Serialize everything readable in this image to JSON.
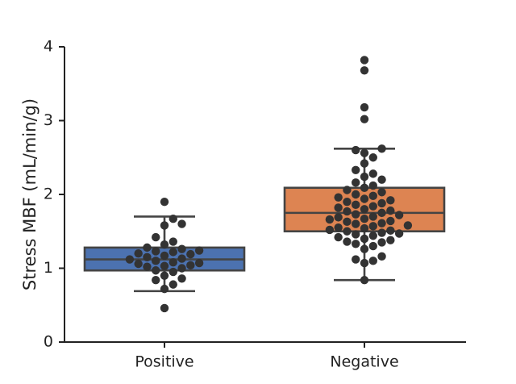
{
  "chart_data": {
    "type": "box+swarm",
    "xlabel": "",
    "ylabel": "Stress MBF (mL/min/g)",
    "ylim": [
      0,
      4
    ],
    "yticks": [
      "0",
      "1",
      "2",
      "3",
      "4"
    ],
    "grid": false,
    "categories": [
      "Positive",
      "Negative"
    ],
    "series": [
      {
        "name": "Positive",
        "color": "#4c72b0",
        "box": {
          "whisker_low": 0.69,
          "q1": 0.97,
          "median": 1.12,
          "q3": 1.28,
          "whisker_high": 1.7
        },
        "points": [
          0.46,
          0.72,
          0.78,
          0.84,
          0.86,
          0.9,
          0.95,
          0.97,
          1.0,
          1.02,
          1.03,
          1.04,
          1.06,
          1.07,
          1.08,
          1.1,
          1.12,
          1.13,
          1.15,
          1.17,
          1.19,
          1.2,
          1.22,
          1.23,
          1.24,
          1.26,
          1.28,
          1.32,
          1.36,
          1.42,
          1.58,
          1.6,
          1.67,
          1.9
        ]
      },
      {
        "name": "Negative",
        "color": "#dd8452",
        "box": {
          "whisker_low": 0.84,
          "q1": 1.5,
          "median": 1.75,
          "q3": 2.09,
          "whisker_high": 2.62
        },
        "points": [
          0.84,
          1.07,
          1.1,
          1.12,
          1.16,
          1.26,
          1.3,
          1.33,
          1.35,
          1.36,
          1.38,
          1.4,
          1.42,
          1.44,
          1.46,
          1.47,
          1.48,
          1.5,
          1.51,
          1.52,
          1.54,
          1.55,
          1.57,
          1.58,
          1.6,
          1.61,
          1.63,
          1.64,
          1.66,
          1.67,
          1.69,
          1.7,
          1.72,
          1.73,
          1.75,
          1.77,
          1.78,
          1.8,
          1.82,
          1.84,
          1.86,
          1.88,
          1.9,
          1.92,
          1.94,
          1.96,
          1.98,
          2.0,
          2.03,
          2.06,
          2.09,
          2.12,
          2.16,
          2.2,
          2.24,
          2.28,
          2.33,
          2.42,
          2.5,
          2.56,
          2.6,
          2.62,
          3.02,
          3.18,
          3.68,
          3.82
        ]
      }
    ]
  }
}
